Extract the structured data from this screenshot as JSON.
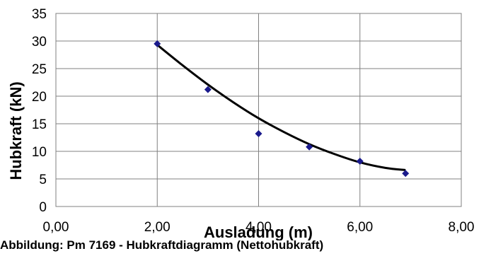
{
  "chart_data": {
    "type": "scatter",
    "title": "",
    "xlabel": "Ausladung (m)",
    "ylabel": "Hubkraft (kN)",
    "xlim": [
      0,
      8
    ],
    "ylim": [
      0,
      35
    ],
    "x_ticks": [
      "0,00",
      "2,00",
      "4,00",
      "6,00",
      "8,00"
    ],
    "y_ticks": [
      "0",
      "5",
      "10",
      "15",
      "20",
      "25",
      "30",
      "35"
    ],
    "grid": "vertical and horizontal",
    "legend": "none",
    "series": [
      {
        "points": [
          {
            "x": 2.0,
            "y": 29.5
          },
          {
            "x": 3.0,
            "y": 21.2
          },
          {
            "x": 4.0,
            "y": 13.2
          },
          {
            "x": 5.0,
            "y": 10.8
          },
          {
            "x": 6.0,
            "y": 8.2
          },
          {
            "x": 6.9,
            "y": 6.0
          }
        ],
        "color": "#1a1a8c"
      }
    ],
    "trendline": {
      "type": "polynomial",
      "points": [
        {
          "x": 2.0,
          "y": 29.3
        },
        {
          "x": 2.5,
          "y": 25.6
        },
        {
          "x": 3.0,
          "y": 22.1
        },
        {
          "x": 3.5,
          "y": 18.9
        },
        {
          "x": 4.0,
          "y": 16.0
        },
        {
          "x": 4.5,
          "y": 13.5
        },
        {
          "x": 5.0,
          "y": 11.3
        },
        {
          "x": 5.5,
          "y": 9.5
        },
        {
          "x": 6.0,
          "y": 8.0
        },
        {
          "x": 6.5,
          "y": 7.0
        },
        {
          "x": 6.9,
          "y": 6.6
        }
      ],
      "color": "#000000"
    }
  },
  "caption": "Abbildung: Pm 7169 - Hubkraftdiagramm (Nettohubkraft)"
}
